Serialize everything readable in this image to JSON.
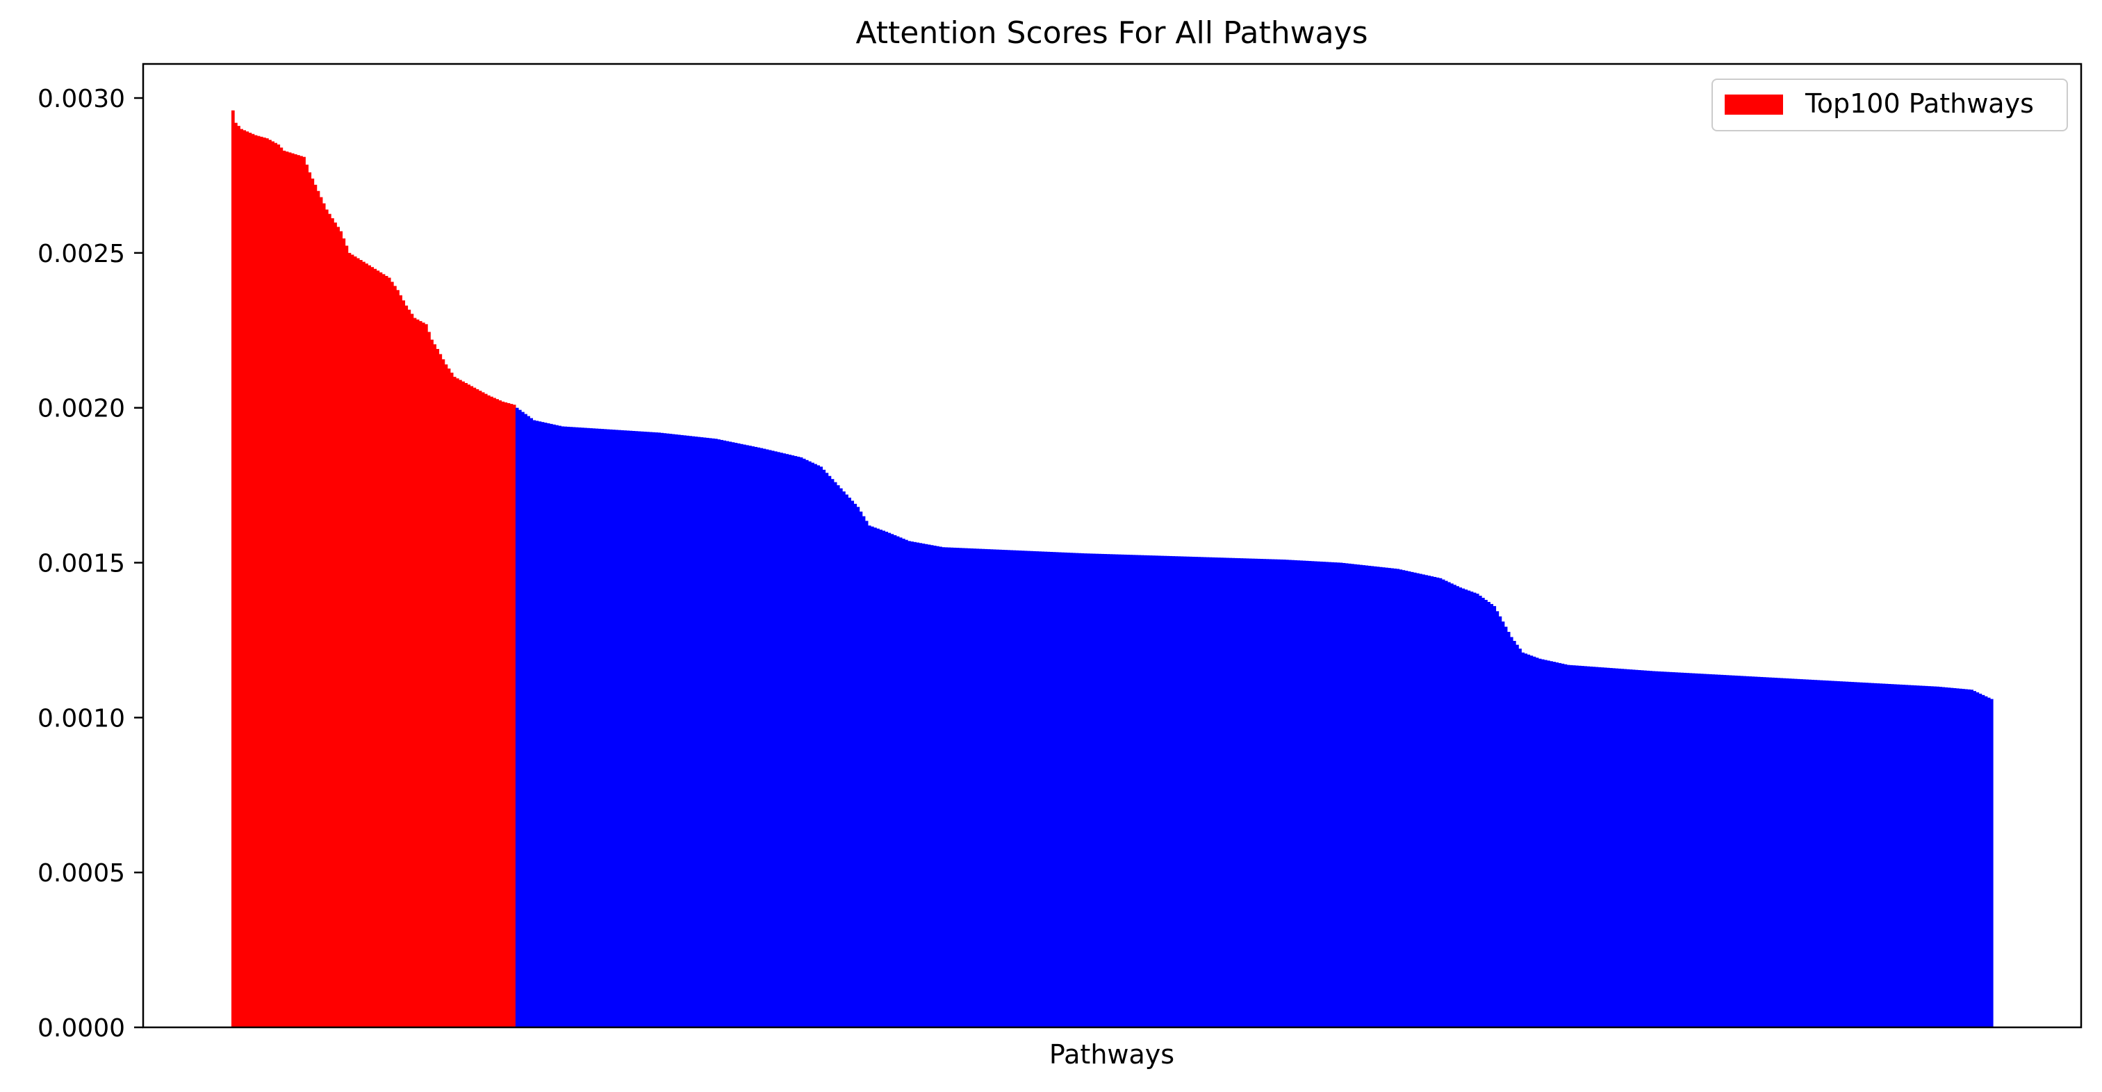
{
  "chart_data": {
    "type": "bar",
    "title": "Attention Scores For All Pathways",
    "xlabel": "Pathways",
    "ylabel": "",
    "ylim": [
      0,
      0.00311
    ],
    "grid": false,
    "legend": {
      "placement": "top-right",
      "entries": [
        "Top100 Pathways"
      ]
    },
    "yticks": [
      "0.0000",
      "0.0005",
      "0.0010",
      "0.0015",
      "0.0020",
      "0.0025",
      "0.0030"
    ],
    "ytick_values": [
      0,
      0.0005,
      0.001,
      0.0015,
      0.002,
      0.0025,
      0.003
    ],
    "x_ticks_shown": false,
    "bar_count": 620,
    "highlight_count": 100,
    "colors": {
      "highlight": "#ff0000",
      "rest": "#0000ff"
    },
    "series": [
      {
        "name": "Top100 Pathways",
        "color": "#ff0000",
        "index_range": [
          0,
          99
        ],
        "profile": [
          [
            0,
            0.00296
          ],
          [
            1,
            0.00292
          ],
          [
            3,
            0.0029
          ],
          [
            8,
            0.00288
          ],
          [
            12,
            0.00287
          ],
          [
            16,
            0.00285
          ],
          [
            18,
            0.00283
          ],
          [
            25,
            0.00281
          ],
          [
            27,
            0.00276
          ],
          [
            29,
            0.00272
          ],
          [
            31,
            0.00268
          ],
          [
            33,
            0.00264
          ],
          [
            38,
            0.00257
          ],
          [
            41,
            0.0025
          ],
          [
            48,
            0.00246
          ],
          [
            55,
            0.00242
          ],
          [
            58,
            0.00238
          ],
          [
            61,
            0.00233
          ],
          [
            64,
            0.00229
          ],
          [
            68,
            0.00227
          ],
          [
            70,
            0.00222
          ],
          [
            72,
            0.00219
          ],
          [
            75,
            0.00214
          ],
          [
            78,
            0.0021
          ],
          [
            84,
            0.00207
          ],
          [
            90,
            0.00204
          ],
          [
            95,
            0.00202
          ],
          [
            99,
            0.00201
          ]
        ]
      },
      {
        "color": "#0000ff",
        "index_range": [
          100,
          619
        ],
        "profile": [
          [
            100,
            0.002
          ],
          [
            106,
            0.00196
          ],
          [
            116,
            0.00194
          ],
          [
            150,
            0.00192
          ],
          [
            170,
            0.0019
          ],
          [
            186,
            0.00187
          ],
          [
            200,
            0.00184
          ],
          [
            207,
            0.00181
          ],
          [
            212,
            0.00176
          ],
          [
            216,
            0.00172
          ],
          [
            220,
            0.00168
          ],
          [
            224,
            0.00162
          ],
          [
            230,
            0.0016
          ],
          [
            238,
            0.00157
          ],
          [
            250,
            0.00155
          ],
          [
            300,
            0.00153
          ],
          [
            370,
            0.00151
          ],
          [
            390,
            0.0015
          ],
          [
            410,
            0.00148
          ],
          [
            425,
            0.00145
          ],
          [
            432,
            0.00142
          ],
          [
            438,
            0.0014
          ],
          [
            444,
            0.00136
          ],
          [
            447,
            0.00131
          ],
          [
            450,
            0.00126
          ],
          [
            454,
            0.00121
          ],
          [
            460,
            0.00119
          ],
          [
            470,
            0.00117
          ],
          [
            500,
            0.00115
          ],
          [
            520,
            0.00114
          ],
          [
            560,
            0.00112
          ],
          [
            600,
            0.0011
          ],
          [
            612,
            0.00109
          ],
          [
            619,
            0.00106
          ]
        ]
      }
    ]
  }
}
